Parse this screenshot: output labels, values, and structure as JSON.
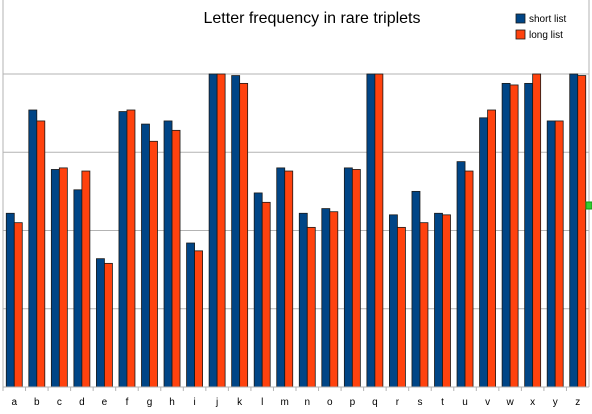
{
  "chart_data": {
    "type": "bar",
    "title": "Letter frequency in rare triplets",
    "xlabel": "",
    "ylabel": "",
    "categories": [
      "a",
      "b",
      "c",
      "d",
      "e",
      "f",
      "g",
      "h",
      "i",
      "j",
      "k",
      "l",
      "m",
      "n",
      "o",
      "p",
      "q",
      "r",
      "s",
      "t",
      "u",
      "v",
      "w",
      "x",
      "y",
      "z"
    ],
    "ylim": [
      0,
      100
    ],
    "grid": true,
    "legend_position": "top-right",
    "series": [
      {
        "name": "short list",
        "color": "#004586",
        "values": [
          55.5,
          88.5,
          69.5,
          63,
          41,
          88,
          84,
          85,
          46,
          100,
          99.5,
          62,
          70,
          55.5,
          57,
          70,
          100,
          55,
          62.5,
          55.5,
          72,
          86,
          97,
          97,
          85,
          100
        ]
      },
      {
        "name": "long list",
        "color": "#ff420e",
        "values": [
          52.5,
          85,
          70,
          69,
          39.5,
          88.5,
          78.5,
          82,
          43.5,
          100,
          97,
          59,
          69,
          51,
          56,
          69.5,
          100,
          51,
          52.5,
          55,
          69,
          88.5,
          96.5,
          100,
          85,
          99.5
        ]
      }
    ]
  }
}
